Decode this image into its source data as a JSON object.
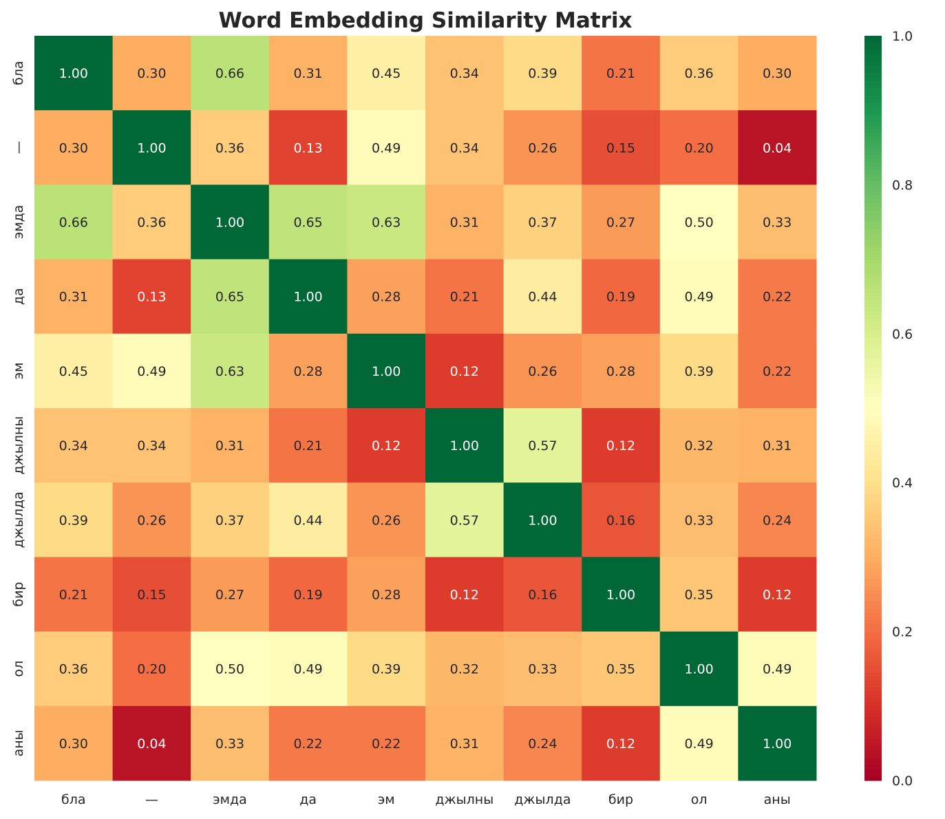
{
  "chart_data": {
    "type": "heatmap",
    "title": "Word Embedding Similarity Matrix",
    "x_labels": [
      "бла",
      "—",
      "эмда",
      "да",
      "эм",
      "джылны",
      "джылда",
      "бир",
      "ол",
      "аны"
    ],
    "y_labels": [
      "бла",
      "—",
      "эмда",
      "да",
      "эм",
      "джылны",
      "джылда",
      "бир",
      "ол",
      "аны"
    ],
    "values": [
      [
        1.0,
        0.3,
        0.66,
        0.31,
        0.45,
        0.34,
        0.39,
        0.21,
        0.36,
        0.3
      ],
      [
        0.3,
        1.0,
        0.36,
        0.13,
        0.49,
        0.34,
        0.26,
        0.15,
        0.2,
        0.04
      ],
      [
        0.66,
        0.36,
        1.0,
        0.65,
        0.63,
        0.31,
        0.37,
        0.27,
        0.5,
        0.33
      ],
      [
        0.31,
        0.13,
        0.65,
        1.0,
        0.28,
        0.21,
        0.44,
        0.19,
        0.49,
        0.22
      ],
      [
        0.45,
        0.49,
        0.63,
        0.28,
        1.0,
        0.12,
        0.26,
        0.28,
        0.39,
        0.22
      ],
      [
        0.34,
        0.34,
        0.31,
        0.21,
        0.12,
        1.0,
        0.57,
        0.12,
        0.32,
        0.31
      ],
      [
        0.39,
        0.26,
        0.37,
        0.44,
        0.26,
        0.57,
        1.0,
        0.16,
        0.33,
        0.24
      ],
      [
        0.21,
        0.15,
        0.27,
        0.19,
        0.28,
        0.12,
        0.16,
        1.0,
        0.35,
        0.12
      ],
      [
        0.36,
        0.2,
        0.5,
        0.49,
        0.39,
        0.32,
        0.33,
        0.35,
        1.0,
        0.49
      ],
      [
        0.3,
        0.04,
        0.33,
        0.22,
        0.22,
        0.31,
        0.24,
        0.12,
        0.49,
        1.0
      ]
    ],
    "colormap": "RdYlGn",
    "colormap_stops": [
      "#a50026",
      "#d73027",
      "#f46d43",
      "#fdae61",
      "#fee08b",
      "#ffffbf",
      "#d9ef8b",
      "#a6d96a",
      "#66bd63",
      "#1a9850",
      "#006837"
    ],
    "vmin": 0,
    "vmax": 1,
    "colorbar_ticks": [
      "0.0",
      "0.2",
      "0.4",
      "0.6",
      "0.8",
      "1.0"
    ],
    "annotation_format": "2 decimals"
  }
}
